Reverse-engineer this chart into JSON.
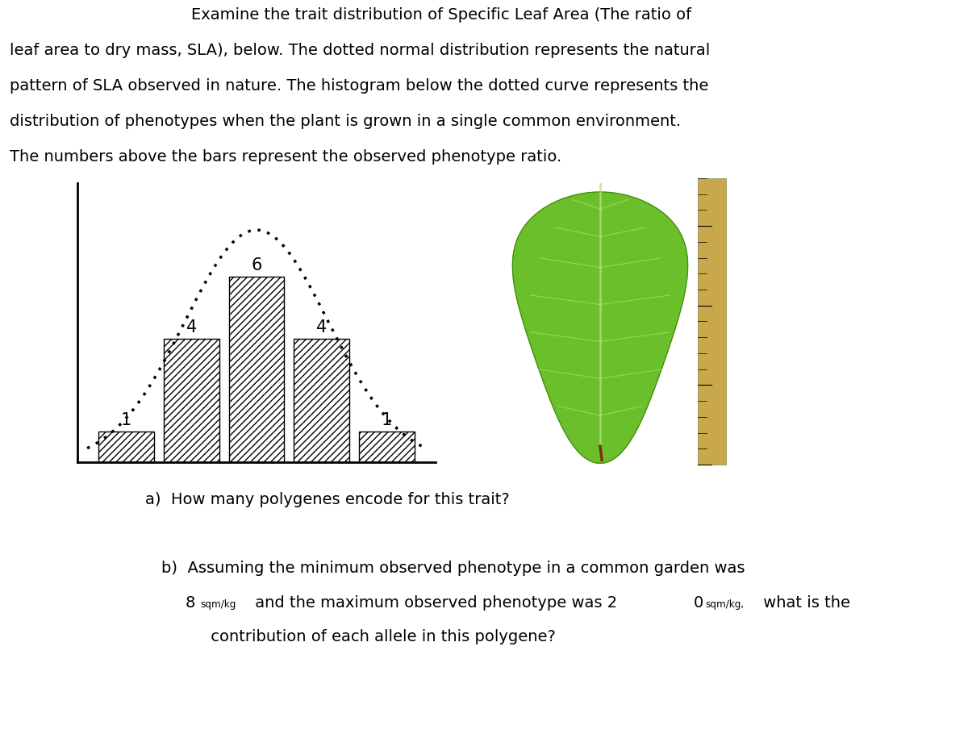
{
  "title_lines": [
    "                                    Examine the trait distribution of Specific Leaf Area (The ratio of",
    "leaf area to dry mass, SLA), below. The dotted normal distribution represents the natural",
    "pattern of SLA observed in nature. The histogram below the dotted curve represents the",
    "distribution of phenotypes when the plant is grown in a single common environment.",
    "The numbers above the bars represent the observed phenotype ratio."
  ],
  "bar_heights": [
    1,
    4,
    6,
    4,
    1
  ],
  "bar_labels": [
    "1",
    "4",
    "6",
    "4",
    "1"
  ],
  "bar_color": "#ffffff",
  "bar_edgecolor": "#000000",
  "hatch": "////",
  "question_a": "a)  How many polygenes encode for this trait?",
  "question_b_line1": "b)  Assuming the minimum observed phenotype in a common garden was",
  "question_b_line3": "     contribution of each allele in this polygene?",
  "background_color": "#ffffff",
  "text_color": "#000000",
  "title_fontsize": 14.0,
  "question_fontsize": 14.0,
  "fig_width": 12.0,
  "fig_height": 9.1,
  "leaf_bg": "#000000",
  "leaf_green": "#6abf2a",
  "leaf_dark_green": "#3d8a10",
  "ruler_color": "#c8a84b"
}
